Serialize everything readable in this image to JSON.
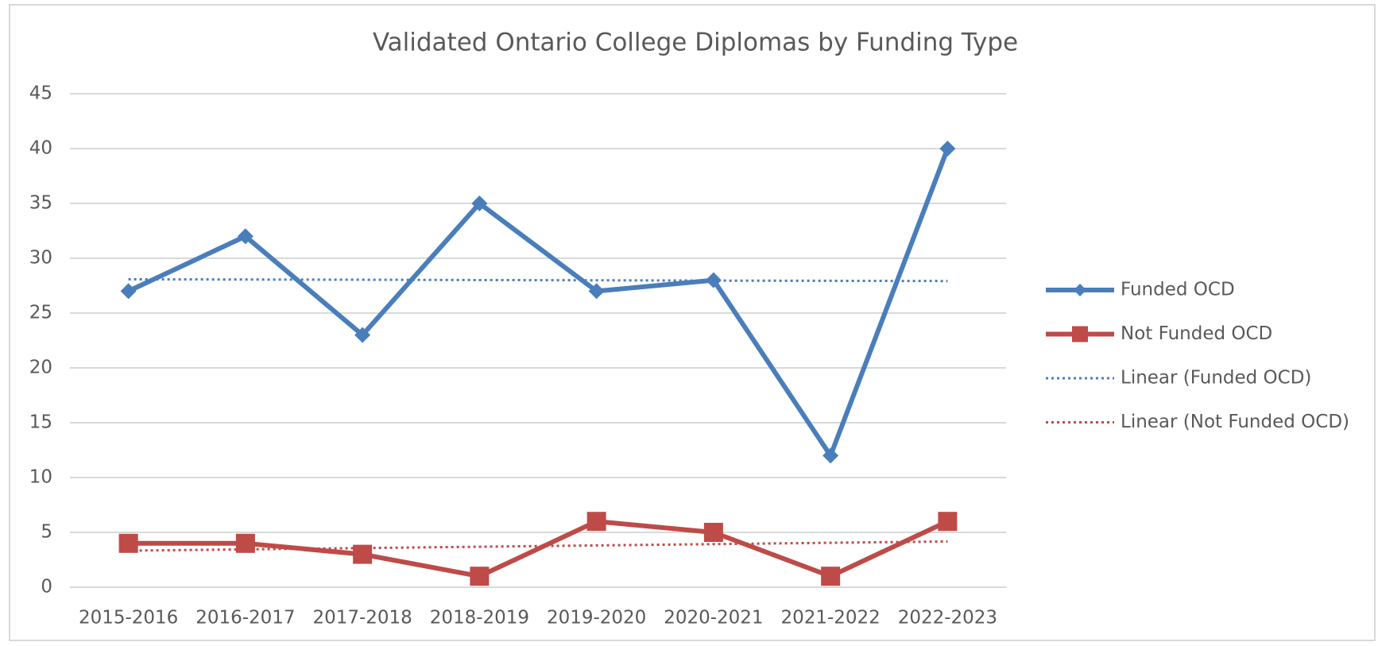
{
  "chart_data": {
    "type": "line",
    "title": "Validated Ontario College Diplomas by Funding Type",
    "categories": [
      "2015-2016",
      "2016-2017",
      "2017-2018",
      "2018-2019",
      "2019-2020",
      "2020-2021",
      "2021-2022",
      "2022-2023"
    ],
    "ylim": [
      0,
      45
    ],
    "yticks": [
      0,
      5,
      10,
      15,
      20,
      25,
      30,
      35,
      40,
      45
    ],
    "grid": true,
    "legend": "right",
    "series": [
      {
        "name": "Funded OCD",
        "color": "#4a7ebb",
        "marker": "diamond",
        "style": "solid",
        "values": [
          27,
          32,
          23,
          35,
          27,
          28,
          12,
          40
        ]
      },
      {
        "name": "Not Funded OCD",
        "color": "#be4b48",
        "marker": "square",
        "style": "solid",
        "values": [
          4,
          4,
          3,
          1,
          6,
          5,
          1,
          6
        ]
      },
      {
        "name": "Linear (Funded OCD)",
        "color": "#4a7ebb",
        "marker": "none",
        "style": "dotted",
        "values": [
          28.08,
          28.06,
          28.04,
          28.01,
          27.99,
          27.96,
          27.94,
          27.92
        ]
      },
      {
        "name": "Linear (Not Funded OCD)",
        "color": "#be4b48",
        "marker": "none",
        "style": "dotted",
        "values": [
          3.33,
          3.45,
          3.57,
          3.69,
          3.81,
          3.93,
          4.05,
          4.17
        ]
      }
    ]
  }
}
